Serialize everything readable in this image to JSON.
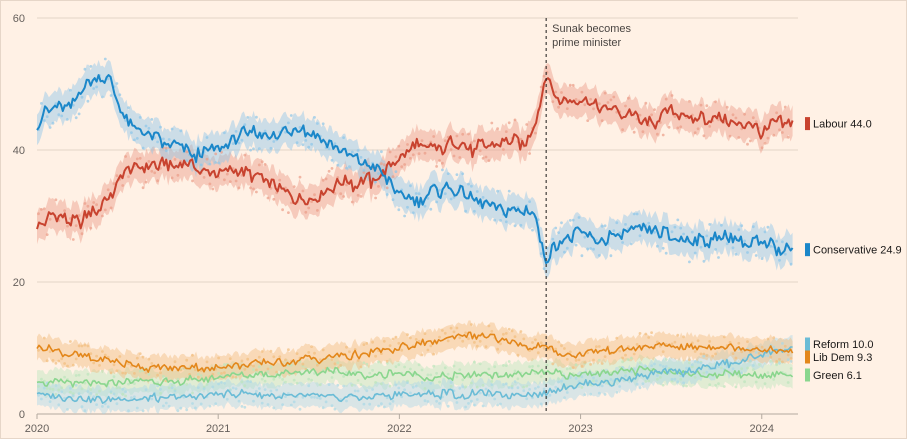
{
  "chart_data": {
    "type": "line",
    "title": "",
    "xlabel": "",
    "ylabel": "",
    "ylim": [
      0,
      60
    ],
    "y_ticks": [
      0,
      20,
      40,
      60
    ],
    "xlim": [
      2020.0,
      2024.2
    ],
    "x_ticks": [
      2020,
      2021,
      2022,
      2023,
      2024
    ],
    "x_tick_labels": [
      "2020",
      "2021",
      "2022",
      "2023",
      "2024"
    ],
    "grid": "horizontal",
    "legend": "direct labels at right end of each line",
    "annotation": {
      "x": 2022.81,
      "text_line1": "Sunak becomes",
      "text_line2": "prime minister"
    },
    "series": [
      {
        "name": "Labour",
        "end_label": "Labour 44.0",
        "color": "#c8432f",
        "band_color": "#eb9c88",
        "x": [
          2020.0,
          2020.1,
          2020.2,
          2020.3,
          2020.4,
          2020.5,
          2020.6,
          2020.7,
          2020.8,
          2020.9,
          2021.0,
          2021.1,
          2021.2,
          2021.3,
          2021.4,
          2021.5,
          2021.6,
          2021.7,
          2021.8,
          2021.9,
          2022.0,
          2022.1,
          2022.2,
          2022.3,
          2022.4,
          2022.5,
          2022.6,
          2022.7,
          2022.75,
          2022.81,
          2022.9,
          2023.0,
          2023.1,
          2023.2,
          2023.3,
          2023.4,
          2023.5,
          2023.6,
          2023.7,
          2023.8,
          2023.9,
          2024.0,
          2024.1,
          2024.17
        ],
        "values": [
          29,
          30,
          29,
          30,
          33,
          37,
          37,
          38,
          38,
          37,
          37,
          37,
          36,
          35,
          33,
          33,
          34,
          35,
          35,
          36,
          39,
          41,
          40,
          41,
          40,
          41,
          42,
          41,
          44,
          51,
          47,
          47,
          47,
          46,
          45,
          44,
          46,
          45,
          45,
          44,
          44,
          43,
          44,
          44
        ]
      },
      {
        "name": "Conservative",
        "end_label": "Conservative 24.9",
        "color": "#1b87c9",
        "band_color": "#8dc6e8",
        "x": [
          2020.0,
          2020.1,
          2020.2,
          2020.3,
          2020.4,
          2020.5,
          2020.6,
          2020.7,
          2020.8,
          2020.9,
          2021.0,
          2021.1,
          2021.2,
          2021.3,
          2021.4,
          2021.5,
          2021.6,
          2021.7,
          2021.8,
          2021.9,
          2022.0,
          2022.1,
          2022.2,
          2022.3,
          2022.4,
          2022.5,
          2022.6,
          2022.7,
          2022.75,
          2022.81,
          2022.9,
          2023.0,
          2023.1,
          2023.2,
          2023.3,
          2023.4,
          2023.5,
          2023.6,
          2023.7,
          2023.8,
          2023.9,
          2024.0,
          2024.1,
          2024.17
        ],
        "values": [
          44,
          47,
          47,
          51,
          51,
          44,
          42,
          41,
          40,
          39,
          40,
          42,
          43,
          42,
          43,
          43,
          41,
          39,
          38,
          37,
          33,
          32,
          34,
          34,
          33,
          32,
          31,
          31,
          30,
          23,
          27,
          27,
          26,
          27,
          28,
          28,
          27,
          26,
          26,
          27,
          26,
          26,
          25,
          25
        ]
      },
      {
        "name": "Reform",
        "end_label": "Reform 10.0",
        "color": "#6bbcd6",
        "band_color": "#aad8e6",
        "x": [
          2020.0,
          2020.2,
          2020.4,
          2020.6,
          2020.8,
          2021.0,
          2021.2,
          2021.4,
          2021.6,
          2021.8,
          2022.0,
          2022.2,
          2022.4,
          2022.6,
          2022.8,
          2022.9,
          2023.0,
          2023.2,
          2023.4,
          2023.6,
          2023.8,
          2024.0,
          2024.17
        ],
        "values": [
          3,
          2.5,
          2,
          2.5,
          2.5,
          3,
          3,
          2.5,
          2.5,
          2.5,
          3,
          3,
          3,
          3,
          3,
          4,
          4.5,
          5,
          6,
          6.5,
          7.5,
          9,
          10
        ]
      },
      {
        "name": "Lib Dem",
        "end_label": "Lib Dem 9.3",
        "color": "#e3871b",
        "band_color": "#f2bd7e",
        "x": [
          2020.0,
          2020.2,
          2020.4,
          2020.6,
          2020.8,
          2021.0,
          2021.2,
          2021.4,
          2021.6,
          2021.8,
          2022.0,
          2022.2,
          2022.4,
          2022.6,
          2022.8,
          2022.9,
          2023.0,
          2023.2,
          2023.4,
          2023.6,
          2023.8,
          2024.0,
          2024.17
        ],
        "values": [
          10,
          9,
          8,
          7,
          7,
          7,
          7.5,
          8,
          8.5,
          9,
          10,
          11,
          12,
          11,
          10,
          9,
          9,
          10,
          10.5,
          10,
          10,
          10,
          9.3
        ]
      },
      {
        "name": "Green",
        "end_label": "Green 6.1",
        "color": "#8ad68e",
        "band_color": "#bce6bc",
        "x": [
          2020.0,
          2020.2,
          2020.4,
          2020.6,
          2020.8,
          2021.0,
          2021.2,
          2021.4,
          2021.6,
          2021.8,
          2022.0,
          2022.2,
          2022.4,
          2022.6,
          2022.8,
          2022.9,
          2023.0,
          2023.2,
          2023.4,
          2023.6,
          2023.8,
          2024.0,
          2024.17
        ],
        "values": [
          5,
          4.5,
          4.5,
          5,
          5,
          5.5,
          6,
          6,
          6.5,
          6,
          6,
          5.5,
          6,
          6,
          6,
          6,
          6,
          6.5,
          6.5,
          6,
          6,
          6,
          6.1
        ]
      }
    ]
  }
}
